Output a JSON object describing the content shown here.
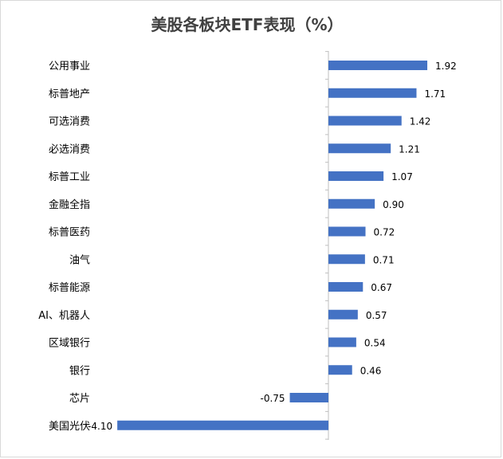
{
  "chart_data": {
    "type": "bar",
    "orientation": "horizontal",
    "title": "美股各板块ETF表现（%）",
    "xlabel": "",
    "ylabel": "",
    "categories": [
      "公用事业",
      "标普地产",
      "可选消费",
      "必选消费",
      "标普工业",
      "金融全指",
      "标普医药",
      "油气",
      "标普能源",
      "AI、机器人",
      "区域银行",
      "银行",
      "芯片",
      "美国光伏"
    ],
    "series": [
      {
        "values": [
          1.92,
          1.71,
          1.42,
          1.21,
          1.07,
          0.9,
          0.72,
          0.71,
          0.67,
          0.57,
          0.54,
          0.46,
          -0.75,
          -4.1
        ],
        "labels": [
          "1.92",
          "1.71",
          "1.42",
          "1.21",
          "1.07",
          "0.90",
          "0.72",
          "0.71",
          "0.67",
          "0.57",
          "0.54",
          "0.46",
          "-0.75",
          "-4.10"
        ]
      }
    ],
    "bar_color": "#4472c4",
    "axis_color": "#bfbfbf",
    "grid": false,
    "legend": "none"
  }
}
